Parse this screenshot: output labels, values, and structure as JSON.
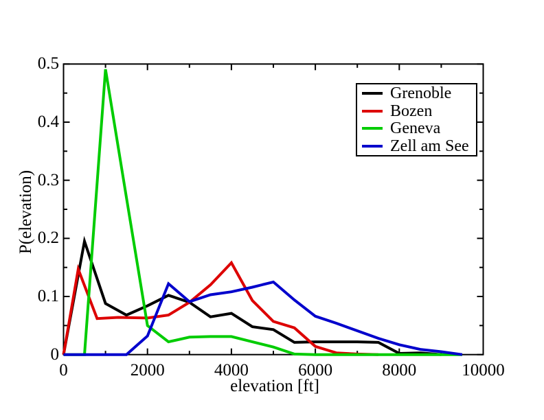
{
  "chart_data": {
    "type": "line",
    "title": "",
    "xlabel": "elevation [ft]",
    "ylabel": "P(elevation)",
    "xlim": [
      0,
      10000
    ],
    "ylim": [
      0,
      0.5
    ],
    "grid": false,
    "legend_position": "upper-right",
    "x_major_ticks": [
      0,
      2000,
      4000,
      6000,
      8000,
      10000
    ],
    "x_major_tick_labels": [
      "0",
      "2000",
      "4000",
      "6000",
      "8000",
      "10000"
    ],
    "x_minor_ticks": [
      1000,
      3000,
      5000,
      7000,
      9000
    ],
    "y_major_ticks": [
      0,
      0.1,
      0.2,
      0.3,
      0.4,
      0.5
    ],
    "y_major_tick_labels": [
      "0",
      "0.1",
      "0.2",
      "0.3",
      "0.4",
      "0.5"
    ],
    "y_minor_ticks": [
      0.05,
      0.15,
      0.25,
      0.35,
      0.45
    ],
    "axis_color": "#000000",
    "background_color": "#ffffff",
    "series": [
      {
        "name": "Grenoble",
        "color": "#000000",
        "points": [
          [
            0,
            0
          ],
          [
            500,
            0.195
          ],
          [
            1000,
            0.088
          ],
          [
            1500,
            0.068
          ],
          [
            2000,
            0.084
          ],
          [
            2500,
            0.102
          ],
          [
            3000,
            0.09
          ],
          [
            3500,
            0.065
          ],
          [
            4000,
            0.071
          ],
          [
            4500,
            0.048
          ],
          [
            5000,
            0.043
          ],
          [
            5500,
            0.021
          ],
          [
            6000,
            0.022
          ],
          [
            6500,
            0.022
          ],
          [
            7000,
            0.022
          ],
          [
            7500,
            0.021
          ],
          [
            8000,
            0.002
          ],
          [
            8500,
            0.003
          ],
          [
            9000,
            0
          ]
        ]
      },
      {
        "name": "Bozen",
        "color": "#dd0000",
        "points": [
          [
            0,
            0
          ],
          [
            350,
            0.147
          ],
          [
            800,
            0.062
          ],
          [
            1300,
            0.064
          ],
          [
            2000,
            0.063
          ],
          [
            2500,
            0.068
          ],
          [
            3000,
            0.09
          ],
          [
            3500,
            0.12
          ],
          [
            4000,
            0.158
          ],
          [
            4500,
            0.093
          ],
          [
            5000,
            0.057
          ],
          [
            5500,
            0.046
          ],
          [
            6000,
            0.014
          ],
          [
            6500,
            0.003
          ],
          [
            7000,
            0.001
          ],
          [
            7500,
            0
          ]
        ]
      },
      {
        "name": "Geneva",
        "color": "#00cc00",
        "points": [
          [
            0,
            0
          ],
          [
            500,
            0
          ],
          [
            1000,
            0.491
          ],
          [
            1500,
            0.27
          ],
          [
            2000,
            0.05
          ],
          [
            2500,
            0.022
          ],
          [
            3000,
            0.03
          ],
          [
            3500,
            0.031
          ],
          [
            4000,
            0.031
          ],
          [
            4500,
            0.022
          ],
          [
            5000,
            0.013
          ],
          [
            5500,
            0.001
          ],
          [
            6000,
            0
          ],
          [
            7000,
            0
          ],
          [
            8000,
            0
          ],
          [
            9500,
            0
          ]
        ]
      },
      {
        "name": "Zell am See",
        "color": "#0000cc",
        "points": [
          [
            0,
            0
          ],
          [
            1000,
            0
          ],
          [
            1500,
            0
          ],
          [
            2000,
            0.032
          ],
          [
            2500,
            0.122
          ],
          [
            3000,
            0.091
          ],
          [
            3500,
            0.103
          ],
          [
            4000,
            0.108
          ],
          [
            4500,
            0.116
          ],
          [
            5000,
            0.125
          ],
          [
            5500,
            0.094
          ],
          [
            6000,
            0.066
          ],
          [
            6500,
            0.054
          ],
          [
            7000,
            0.041
          ],
          [
            7500,
            0.028
          ],
          [
            8000,
            0.017
          ],
          [
            8500,
            0.009
          ],
          [
            9000,
            0.005
          ],
          [
            9500,
            0
          ]
        ]
      }
    ]
  }
}
